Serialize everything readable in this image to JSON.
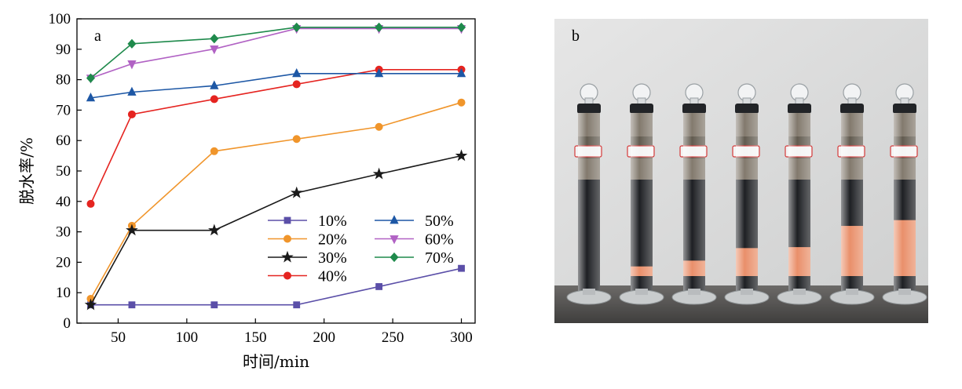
{
  "chart_data": {
    "type": "line",
    "panel_label": "a",
    "xlabel": "时间/min",
    "ylabel": "脱水率/%",
    "xlim": [
      20,
      310
    ],
    "ylim": [
      0,
      100
    ],
    "xticks": [
      50,
      100,
      150,
      200,
      250,
      300
    ],
    "yticks": [
      0,
      10,
      20,
      30,
      40,
      50,
      60,
      70,
      80,
      90,
      100
    ],
    "grid": false,
    "legend_position": "bottom-right",
    "x": [
      30,
      60,
      120,
      180,
      240,
      300
    ],
    "series": [
      {
        "name": "10%",
        "color": "#5b4fa8",
        "marker": "square",
        "values": [
          6,
          6,
          6,
          6,
          12,
          18
        ]
      },
      {
        "name": "20%",
        "color": "#f0952b",
        "marker": "circle",
        "values": [
          8,
          32,
          56.5,
          60.5,
          64.5,
          72.5
        ]
      },
      {
        "name": "30%",
        "color": "#1a1a1a",
        "marker": "star",
        "values": [
          6,
          30.5,
          30.5,
          42.8,
          49,
          55
        ]
      },
      {
        "name": "40%",
        "color": "#e52420",
        "marker": "circle",
        "values": [
          39.2,
          68.6,
          73.6,
          78.5,
          83.3,
          83.3
        ]
      },
      {
        "name": "50%",
        "color": "#1d57a5",
        "marker": "triangle-up",
        "values": [
          74,
          75.9,
          78,
          82,
          82,
          82
        ]
      },
      {
        "name": "60%",
        "color": "#b162c4",
        "marker": "triangle-down",
        "values": [
          80.5,
          85.2,
          90.1,
          96.8,
          96.8,
          96.8
        ]
      },
      {
        "name": "70%",
        "color": "#1f8a4c",
        "marker": "diamond",
        "values": [
          80.5,
          91.8,
          93.5,
          97.2,
          97.2,
          97.2
        ]
      }
    ]
  },
  "photo": {
    "panel_label": "b",
    "tube_count": 7,
    "colors": {
      "dark": "#121418",
      "orange": "#e88a63",
      "wall": "#dcdcdc",
      "floor": "#545250"
    },
    "orange_fraction": [
      0,
      0.1,
      0.16,
      0.29,
      0.3,
      0.52,
      0.58
    ]
  }
}
